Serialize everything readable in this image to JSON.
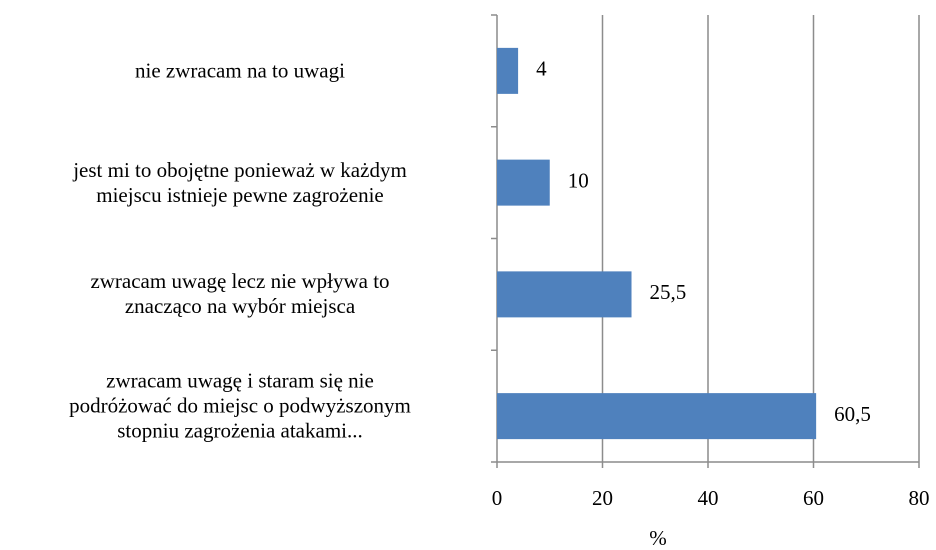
{
  "chart_data": {
    "type": "bar",
    "orientation": "horizontal",
    "categories": [
      "nie zwracam na to uwagi",
      "jest mi to obojętne ponieważ w każdym\nmiejscu istnieje pewne zagrożenie",
      "zwracam uwagę lecz nie wpływa to\nznacząco na wybór miejsca",
      "zwracam uwagę i staram się nie\npodróżować do miejsc o podwyższonym\nstopniu zagrożenia atakami..."
    ],
    "values": [
      4,
      10,
      25.5,
      60.5
    ],
    "value_labels": [
      "4",
      "10",
      "25,5",
      "60,5"
    ],
    "color": "#4f81bd",
    "xlabel": "%",
    "xlim": [
      0,
      80
    ],
    "xticks": [
      0,
      20,
      40,
      60,
      80
    ],
    "grid": true
  }
}
